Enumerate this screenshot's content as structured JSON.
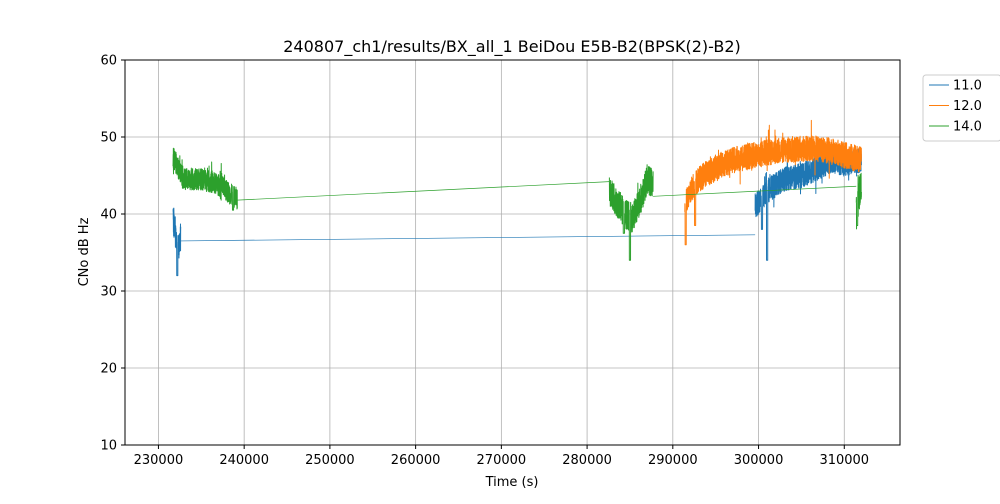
{
  "chart_data": {
    "type": "line",
    "title": "240807_ch1/results/BX_all_1 BeiDou E5B-B2(BPSK(2)-B2)",
    "xlabel": "Time (s)",
    "ylabel": "CNo dB Hz",
    "xlim": [
      226100,
      316500
    ],
    "ylim": [
      10,
      60
    ],
    "xticks": [
      230000,
      240000,
      250000,
      260000,
      270000,
      280000,
      290000,
      300000,
      310000
    ],
    "yticks": [
      10,
      20,
      30,
      40,
      50,
      60
    ],
    "grid": true,
    "legend_position": "outside-top-right",
    "series": [
      {
        "name": "11.0",
        "color": "#1f77b4",
        "segments": [
          {
            "x_start": 231700,
            "x_end": 232600,
            "points": [
              [
                231700,
                39.5
              ],
              [
                232200,
                36.0
              ],
              [
                232600,
                36.5
              ]
            ],
            "base": 39.0,
            "noise": 2.0,
            "dips": [
              [
                232200,
                32.0
              ]
            ]
          },
          {
            "x_start": 299600,
            "x_end": 312000,
            "points": [
              [
                299600,
                41.0
              ],
              [
                301000,
                43.0
              ],
              [
                303000,
                44.5
              ],
              [
                305000,
                45.0
              ],
              [
                307000,
                46.0
              ],
              [
                308500,
                47.0
              ],
              [
                310000,
                46.5
              ],
              [
                312000,
                47.0
              ]
            ],
            "base": 44.5,
            "noise": 1.6,
            "dips": [
              [
                301000,
                34.0
              ],
              [
                300400,
                38.0
              ]
            ]
          }
        ],
        "connectors": [
          [
            [
              232600,
              36.5
            ],
            [
              299600,
              37.3
            ]
          ]
        ]
      },
      {
        "name": "12.0",
        "color": "#ff7f0e",
        "segments": [
          {
            "x_start": 291400,
            "x_end": 312000,
            "points": [
              [
                291400,
                41.0
              ],
              [
                292000,
                43.0
              ],
              [
                293000,
                44.5
              ],
              [
                295000,
                46.0
              ],
              [
                297000,
                47.0
              ],
              [
                299000,
                47.5
              ],
              [
                301000,
                48.0
              ],
              [
                303000,
                48.3
              ],
              [
                305000,
                48.5
              ],
              [
                307000,
                48.5
              ],
              [
                309000,
                48.0
              ],
              [
                310500,
                47.5
              ],
              [
                312000,
                47.0
              ]
            ],
            "base": 47.0,
            "noise": 1.7,
            "dips": [
              [
                291500,
                36.0
              ],
              [
                292600,
                38.5
              ]
            ]
          }
        ],
        "connectors": []
      },
      {
        "name": "14.0",
        "color": "#2ca02c",
        "segments": [
          {
            "x_start": 231700,
            "x_end": 239200,
            "points": [
              [
                231700,
                47.5
              ],
              [
                232300,
                46.0
              ],
              [
                233000,
                44.5
              ],
              [
                235000,
                44.5
              ],
              [
                236500,
                44.0
              ],
              [
                237500,
                43.5
              ],
              [
                238500,
                42.5
              ],
              [
                239200,
                42.0
              ]
            ],
            "base": 44.5,
            "noise": 1.4,
            "dips": [
              [
                238700,
                40.5
              ]
            ]
          },
          {
            "x_start": 282600,
            "x_end": 287700,
            "points": [
              [
                282600,
                43.0
              ],
              [
                283500,
                41.5
              ],
              [
                284500,
                40.0
              ],
              [
                285300,
                39.5
              ],
              [
                286300,
                42.0
              ],
              [
                287000,
                44.5
              ],
              [
                287700,
                44.0
              ]
            ],
            "base": 42.0,
            "noise": 1.9,
            "dips": [
              [
                285000,
                34.0
              ],
              [
                284300,
                37.5
              ]
            ]
          },
          {
            "x_start": 311400,
            "x_end": 312000,
            "points": [
              [
                311400,
                40.0
              ],
              [
                311700,
                42.5
              ],
              [
                312000,
                44.0
              ]
            ],
            "base": 42.0,
            "noise": 2.2,
            "dips": [
              [
                311500,
                38.5
              ]
            ]
          }
        ],
        "connectors": [
          [
            [
              239200,
              41.8
            ],
            [
              282600,
              44.2
            ]
          ],
          [
            [
              287700,
              42.3
            ],
            [
              311400,
              43.6
            ]
          ]
        ]
      }
    ]
  }
}
